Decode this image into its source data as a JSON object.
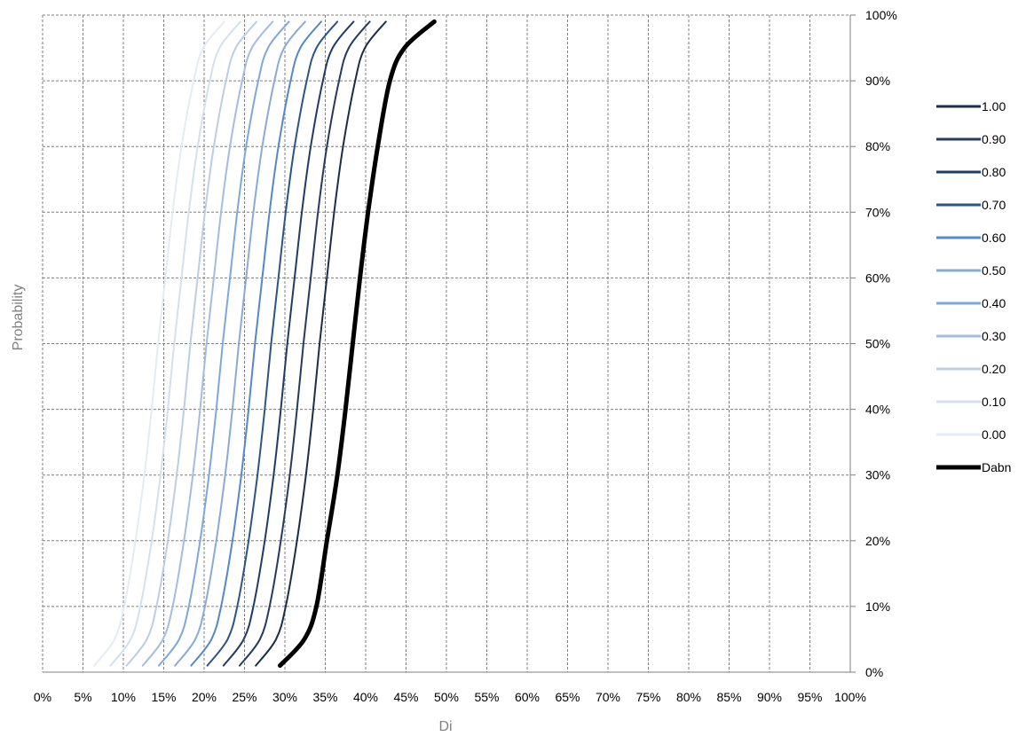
{
  "chart_data": {
    "type": "line",
    "title": "",
    "xlabel": "Di",
    "ylabel": "Probability",
    "xlim": [
      0,
      1
    ],
    "ylim": [
      0,
      1
    ],
    "x_ticks": [
      "0%",
      "5%",
      "10%",
      "15%",
      "20%",
      "25%",
      "30%",
      "35%",
      "40%",
      "45%",
      "50%",
      "55%",
      "60%",
      "65%",
      "70%",
      "75%",
      "80%",
      "85%",
      "90%",
      "95%",
      "100%"
    ],
    "y_ticks": [
      "0%",
      "10%",
      "20%",
      "30%",
      "40%",
      "50%",
      "60%",
      "70%",
      "80%",
      "90%",
      "100%"
    ],
    "y_axis_side": "right",
    "grid": true,
    "grid_style": "dashed",
    "legend_position": "right",
    "probability_levels": [
      0.01,
      0.05,
      0.1,
      0.2,
      0.3,
      0.4,
      0.5,
      0.6,
      0.7,
      0.8,
      0.9,
      0.95,
      0.99
    ],
    "series": [
      {
        "name": "1.00",
        "color": "#1a2e4a",
        "width": 2,
        "x": [
          0.264,
          0.289,
          0.301,
          0.315,
          0.326,
          0.335,
          0.343,
          0.352,
          0.361,
          0.372,
          0.387,
          0.399,
          0.425
        ]
      },
      {
        "name": "0.90",
        "color": "#243b5e",
        "width": 2,
        "x": [
          0.244,
          0.269,
          0.281,
          0.295,
          0.306,
          0.315,
          0.323,
          0.332,
          0.341,
          0.352,
          0.367,
          0.379,
          0.405
        ]
      },
      {
        "name": "0.80",
        "color": "#1f3c66",
        "width": 2,
        "x": [
          0.224,
          0.249,
          0.261,
          0.275,
          0.286,
          0.295,
          0.303,
          0.312,
          0.321,
          0.332,
          0.347,
          0.359,
          0.385
        ]
      },
      {
        "name": "0.70",
        "color": "#2c5486",
        "width": 2,
        "x": [
          0.204,
          0.229,
          0.241,
          0.255,
          0.266,
          0.275,
          0.283,
          0.292,
          0.301,
          0.312,
          0.327,
          0.339,
          0.365
        ]
      },
      {
        "name": "0.60",
        "color": "#5588c8",
        "width": 2,
        "x": [
          0.184,
          0.209,
          0.221,
          0.235,
          0.246,
          0.255,
          0.263,
          0.272,
          0.281,
          0.292,
          0.307,
          0.319,
          0.345
        ]
      },
      {
        "name": "0.50",
        "color": "#8aaad6",
        "width": 2,
        "x": [
          0.164,
          0.189,
          0.201,
          0.215,
          0.226,
          0.235,
          0.243,
          0.252,
          0.261,
          0.272,
          0.287,
          0.299,
          0.325
        ]
      },
      {
        "name": "0.40",
        "color": "#7ea8dc",
        "width": 2,
        "x": [
          0.144,
          0.169,
          0.181,
          0.195,
          0.206,
          0.215,
          0.223,
          0.232,
          0.241,
          0.252,
          0.267,
          0.279,
          0.305
        ]
      },
      {
        "name": "0.30",
        "color": "#a3bce0",
        "width": 2,
        "x": [
          0.124,
          0.149,
          0.161,
          0.175,
          0.186,
          0.195,
          0.203,
          0.212,
          0.221,
          0.232,
          0.247,
          0.259,
          0.285
        ]
      },
      {
        "name": "0.20",
        "color": "#bccde6",
        "width": 2,
        "x": [
          0.104,
          0.129,
          0.141,
          0.155,
          0.166,
          0.175,
          0.183,
          0.192,
          0.201,
          0.212,
          0.227,
          0.239,
          0.265
        ]
      },
      {
        "name": "0.10",
        "color": "#d3e0f0",
        "width": 2,
        "x": [
          0.084,
          0.109,
          0.121,
          0.135,
          0.146,
          0.155,
          0.163,
          0.172,
          0.181,
          0.192,
          0.207,
          0.219,
          0.245
        ]
      },
      {
        "name": "0.00",
        "color": "#e4ebf4",
        "width": 2,
        "x": [
          0.064,
          0.089,
          0.101,
          0.115,
          0.126,
          0.135,
          0.143,
          0.152,
          0.161,
          0.172,
          0.187,
          0.199,
          0.225
        ]
      },
      {
        "name": "Dabn",
        "color": "#000000",
        "width": 5,
        "x": [
          0.294,
          0.324,
          0.339,
          0.352,
          0.365,
          0.375,
          0.384,
          0.393,
          0.403,
          0.415,
          0.43,
          0.448,
          0.485
        ]
      }
    ]
  }
}
